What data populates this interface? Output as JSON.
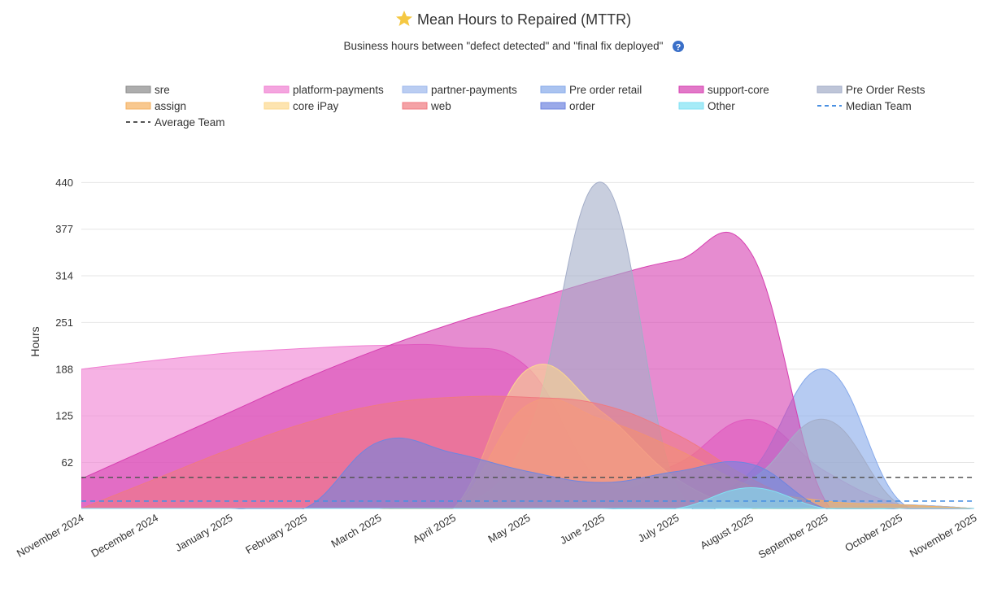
{
  "chart_data": {
    "type": "area",
    "title": "Mean Hours to Repaired (MTTR)",
    "subtitle": "Business hours between \"defect detected\" and \"final fix deployed\"",
    "y_label": "Hours",
    "categories": [
      "November 2024",
      "December 2024",
      "January 2025",
      "February 2025",
      "March 2025",
      "April 2025",
      "May 2025",
      "June 2025",
      "July 2025",
      "August 2025",
      "September 2025",
      "October 2025",
      "November 2025"
    ],
    "ylim": [
      0,
      470
    ],
    "yticks": [
      62,
      125,
      188,
      251,
      314,
      377,
      440
    ],
    "grid": true,
    "series": [
      {
        "name": "sre",
        "color": "#8a8a8a",
        "values": [
          0,
          0,
          0,
          0,
          0,
          0,
          0,
          0,
          0,
          0,
          0,
          5,
          0
        ]
      },
      {
        "name": "platform-payments",
        "color": "#f07fd2",
        "values": [
          188,
          200,
          210,
          216,
          220,
          218,
          190,
          35,
          60,
          120,
          50,
          5,
          0
        ]
      },
      {
        "name": "partner-payments",
        "color": "#9db8ec",
        "values": [
          0,
          0,
          0,
          0,
          0,
          0,
          0,
          0,
          0,
          0,
          0,
          5,
          0
        ]
      },
      {
        "name": "Pre order retail",
        "color": "#86a9ea",
        "values": [
          0,
          0,
          0,
          0,
          0,
          0,
          0,
          0,
          0,
          50,
          188,
          10,
          0
        ]
      },
      {
        "name": "support-core",
        "color": "#d63fb0",
        "values": [
          40,
          85,
          130,
          175,
          215,
          250,
          280,
          310,
          335,
          345,
          10,
          0,
          0
        ]
      },
      {
        "name": "Pre Order Rests",
        "color": "#a3adc8",
        "values": [
          0,
          0,
          0,
          0,
          0,
          0,
          100,
          440,
          30,
          40,
          120,
          5,
          0
        ]
      },
      {
        "name": "assign",
        "color": "#f5b060",
        "values": [
          0,
          0,
          0,
          0,
          0,
          0,
          140,
          120,
          80,
          30,
          10,
          5,
          0
        ]
      },
      {
        "name": "core iPay",
        "color": "#fcd88e",
        "values": [
          0,
          0,
          0,
          0,
          0,
          0,
          188,
          130,
          40,
          0,
          0,
          0,
          0
        ]
      },
      {
        "name": "web",
        "color": "#f07a80",
        "values": [
          0,
          40,
          80,
          115,
          140,
          150,
          150,
          140,
          100,
          40,
          0,
          0,
          0
        ]
      },
      {
        "name": "order",
        "color": "#6f85e0",
        "values": [
          0,
          0,
          0,
          0,
          90,
          75,
          50,
          35,
          50,
          60,
          0,
          0,
          0
        ]
      },
      {
        "name": "Other",
        "color": "#80e2f4",
        "values": [
          0,
          0,
          0,
          0,
          0,
          0,
          0,
          0,
          0,
          28,
          0,
          0,
          0
        ]
      },
      {
        "name": "Median Team",
        "color": "#4a90e2",
        "dash": true,
        "values": [
          10,
          10,
          10,
          10,
          10,
          10,
          10,
          10,
          10,
          10,
          10,
          10,
          10
        ]
      },
      {
        "name": "Average Team",
        "color": "#555555",
        "dash": true,
        "values": [
          42,
          42,
          42,
          42,
          42,
          42,
          42,
          42,
          42,
          42,
          42,
          42,
          42
        ]
      }
    ]
  }
}
